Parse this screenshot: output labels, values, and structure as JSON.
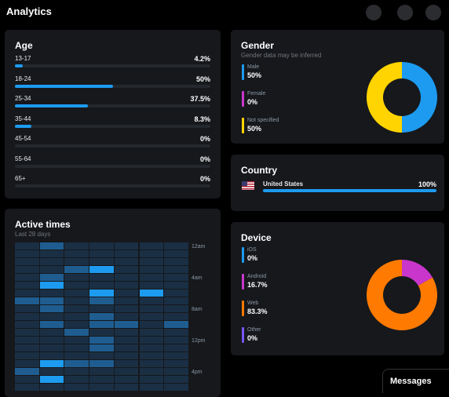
{
  "header": {
    "title": "Analytics"
  },
  "age": {
    "title": "Age",
    "rows": [
      {
        "label": "13-17",
        "value": "4.2%",
        "fraction": 0.042
      },
      {
        "label": "18-24",
        "value": "50%",
        "fraction": 0.5
      },
      {
        "label": "25-34",
        "value": "37.5%",
        "fraction": 0.375
      },
      {
        "label": "35-44",
        "value": "8.3%",
        "fraction": 0.083
      },
      {
        "label": "45-54",
        "value": "0%",
        "fraction": 0
      },
      {
        "label": "55-64",
        "value": "0%",
        "fraction": 0
      },
      {
        "label": "65+",
        "value": "0%",
        "fraction": 0
      }
    ]
  },
  "gender": {
    "title": "Gender",
    "subtitle": "Gender data may be inferred",
    "items": [
      {
        "label": "Male",
        "value": "50%",
        "fraction": 0.5,
        "color": "#1d9bf0"
      },
      {
        "label": "Female",
        "value": "0%",
        "fraction": 0,
        "color": "#c936cc"
      },
      {
        "label": "Not specified",
        "value": "50%",
        "fraction": 0.5,
        "color": "#ffd400"
      }
    ]
  },
  "country": {
    "title": "Country",
    "items": [
      {
        "label": "United States",
        "value": "100%",
        "fraction": 1.0,
        "flag_icon": "us-flag-icon"
      }
    ]
  },
  "device": {
    "title": "Device",
    "items": [
      {
        "label": "iOS",
        "value": "0%",
        "fraction": 0,
        "color": "#1d9bf0"
      },
      {
        "label": "Android",
        "value": "16.7%",
        "fraction": 0.167,
        "color": "#c936cc"
      },
      {
        "label": "Web",
        "value": "83.3%",
        "fraction": 0.833,
        "color": "#ff7a00"
      },
      {
        "label": "Other",
        "value": "0%",
        "fraction": 0,
        "color": "#7856ff"
      }
    ]
  },
  "active_times": {
    "title": "Active times",
    "subtitle": "Last 28 days",
    "time_labels": [
      "12am",
      "4am",
      "8am",
      "12pm",
      "4pm"
    ],
    "levels": [
      [
        0,
        1,
        0,
        0,
        0,
        0,
        0
      ],
      [
        0,
        0,
        0,
        0,
        0,
        0,
        0
      ],
      [
        0,
        0,
        0,
        0,
        0,
        0,
        0
      ],
      [
        0,
        0,
        1,
        2,
        0,
        0,
        0
      ],
      [
        0,
        1,
        0,
        0,
        0,
        0,
        0
      ],
      [
        0,
        2,
        0,
        0,
        0,
        0,
        0
      ],
      [
        0,
        0,
        0,
        2,
        0,
        2,
        0
      ],
      [
        1,
        1,
        0,
        1,
        0,
        0,
        0
      ],
      [
        0,
        1,
        0,
        0,
        0,
        0,
        0
      ],
      [
        0,
        0,
        0,
        1,
        0,
        0,
        0
      ],
      [
        0,
        1,
        0,
        1,
        1,
        0,
        1
      ],
      [
        0,
        0,
        1,
        0,
        0,
        0,
        0
      ],
      [
        0,
        0,
        0,
        1,
        0,
        0,
        0
      ],
      [
        0,
        0,
        0,
        1,
        0,
        0,
        0
      ],
      [
        0,
        0,
        0,
        0,
        0,
        0,
        0
      ],
      [
        0,
        2,
        1,
        1,
        0,
        0,
        0
      ],
      [
        1,
        0,
        0,
        0,
        0,
        0,
        0
      ],
      [
        0,
        2,
        0,
        0,
        0,
        0,
        0
      ],
      [
        0,
        0,
        0,
        0,
        0,
        0,
        0
      ]
    ],
    "colors": [
      "#1a2f44",
      "#1f5d90",
      "#1d9bf0"
    ]
  },
  "messages": {
    "label": "Messages"
  }
}
